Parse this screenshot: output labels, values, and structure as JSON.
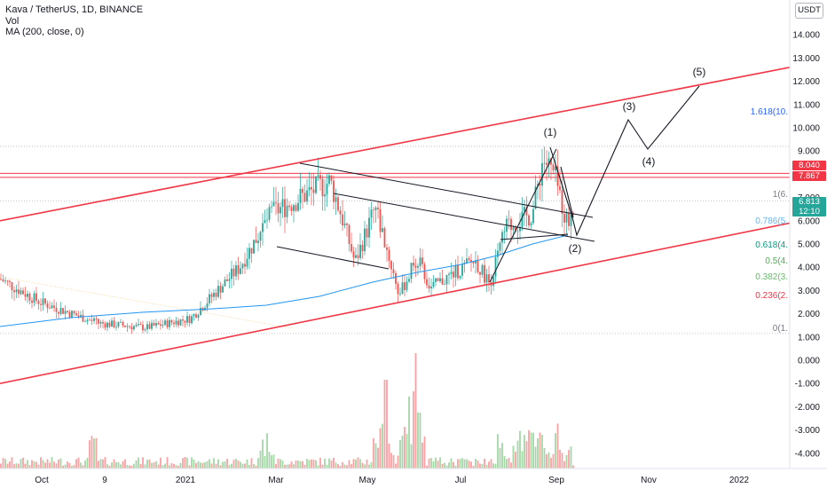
{
  "legend": {
    "title": "Kava / TetherUS, 1D, BINANCE",
    "vol": "Vol",
    "ma": "MA (200, close, 0)"
  },
  "currency_button": "USDT",
  "price_tags": {
    "resistance_top": "8.040",
    "resistance_bottom": "7.867",
    "current_price": "6.813",
    "countdown": "12:10"
  },
  "colors": {
    "channel": "#f23645",
    "ma200": "#2196f3",
    "up": "#26a69a",
    "down": "#ef5350",
    "vol_up": "#a5d6a7",
    "vol_down": "#faa1a4",
    "wave": "#131722",
    "fib_1618": "#2962ff",
    "fib_0786": "#64b5f6",
    "fib_0618": "#089981",
    "fib_05": "#4caf50",
    "fib_0382": "#66bb6a",
    "fib_0236": "#f23645",
    "fib_0": "#787b86",
    "price_tag_bg": "#26a69a"
  },
  "chart_data": {
    "type": "candlestick",
    "symbol": "Kava / TetherUS",
    "interval": "1D",
    "exchange": "BINANCE",
    "y_axis_ticks": [
      "14.000",
      "13.000",
      "12.000",
      "11.000",
      "10.000",
      "9.000",
      "8.000",
      "7.000",
      "6.000",
      "5.000",
      "4.000",
      "3.000",
      "2.000",
      "1.000",
      "0.000",
      "-1.000",
      "-2.000",
      "-3.000",
      "-4.000"
    ],
    "y_axis_range": [
      -4.6,
      14.9
    ],
    "x_axis_labels": [
      "Oct",
      "9",
      "2021",
      "Mar",
      "May",
      "Jul",
      "Sep",
      "Nov",
      "2022"
    ],
    "price_path_keypoints": [
      {
        "t": "Sep 2020",
        "price": 3.5
      },
      {
        "t": "Oct 2020",
        "price": 2.5
      },
      {
        "t": "Nov 2020",
        "price": 1.6
      },
      {
        "t": "Dec 2020",
        "price": 1.4
      },
      {
        "t": "Jan 2021",
        "price": 1.8
      },
      {
        "t": "Feb 2021",
        "price": 4.0
      },
      {
        "t": "Mar 2021",
        "price": 6.3
      },
      {
        "t": "Mar 2021",
        "price": 7.7
      },
      {
        "t": "Apr 2021",
        "price": 6.2
      },
      {
        "t": "Apr 2021",
        "price": 4.2
      },
      {
        "t": "May 2021",
        "price": 6.6
      },
      {
        "t": "May 2021",
        "price": 2.8
      },
      {
        "t": "Jun 2021",
        "price": 4.4
      },
      {
        "t": "Jun 2021",
        "price": 3.1
      },
      {
        "t": "Jul 2021",
        "price": 4.3
      },
      {
        "t": "Jul 2021",
        "price": 3.3
      },
      {
        "t": "Aug 2021",
        "price": 5.7
      },
      {
        "t": "Aug 2021",
        "price": 6.3
      },
      {
        "t": "Aug 2021",
        "price": 8.7
      },
      {
        "t": "Sep 2021",
        "price": 7.9
      },
      {
        "t": "Sep 2021",
        "price": 5.8
      },
      {
        "t": "Sep 2021",
        "price": 6.8
      }
    ],
    "moving_average": {
      "name": "MA (200, close, 0)",
      "start": 1.4,
      "end": 5.3
    },
    "horizontal_levels": [
      8.04,
      7.867
    ],
    "current_price": 6.813,
    "channel": {
      "upper": [
        6.0,
        12.6
      ],
      "lower": [
        -1.0,
        5.9
      ]
    },
    "wave_labels": [
      "(1)",
      "(2)",
      "(3)",
      "(4)",
      "(5)"
    ],
    "wave_points": [
      {
        "label": "(1)",
        "price": 9.2
      },
      {
        "label": "(2)",
        "price": 5.3
      },
      {
        "label": "(3)",
        "price": 10.4
      },
      {
        "label": "(4)",
        "price": 9.0
      },
      {
        "label": "(5)",
        "price": 11.8
      }
    ],
    "fibonacci_labels": [
      {
        "label": "1.618(10.",
        "price": 11.3
      },
      {
        "label": "1(6.",
        "price": 7.3
      },
      {
        "label": "0.786(5.",
        "price": 5.9
      },
      {
        "label": "0.618(4.",
        "price": 4.9
      },
      {
        "label": "0.5(4.",
        "price": 4.2
      },
      {
        "label": "0.382(3.",
        "price": 3.5
      },
      {
        "label": "0.236(2.",
        "price": 2.6
      },
      {
        "label": "0(1.",
        "price": 1.35
      }
    ],
    "volume_baseline": -4.55
  }
}
